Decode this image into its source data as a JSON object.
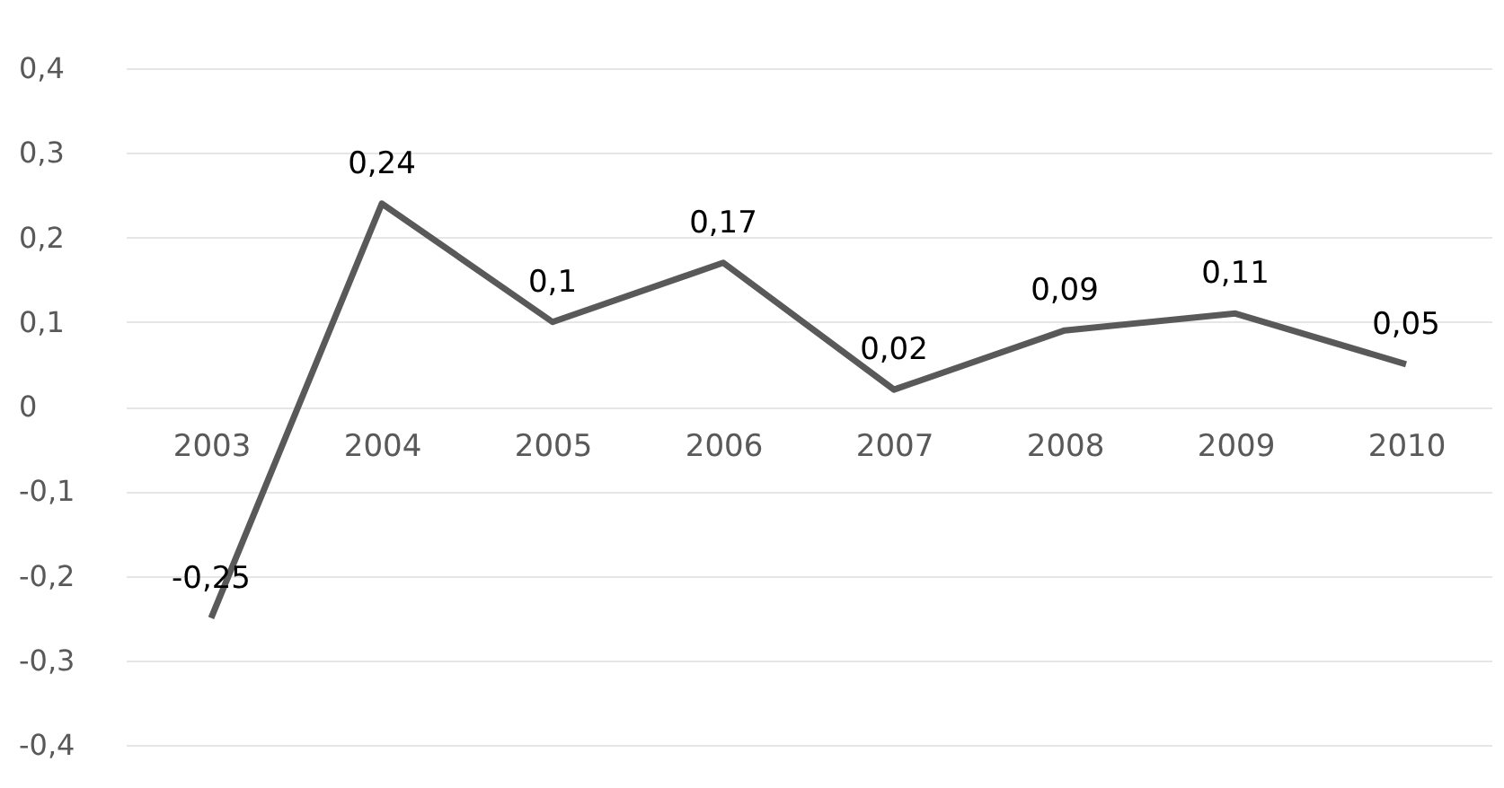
{
  "chart_data": {
    "type": "line",
    "categories": [
      "2003",
      "2004",
      "2005",
      "2006",
      "2007",
      "2008",
      "2009",
      "2010"
    ],
    "series": [
      {
        "color": "#595959",
        "values": [
          -0.25,
          0.24,
          0.1,
          0.17,
          0.02,
          0.09,
          0.11,
          0.05
        ],
        "value_labels": [
          "-0,25",
          "0,24",
          "0,1",
          "0,17",
          "0,02",
          "0,09",
          "0,11",
          "0,05"
        ]
      }
    ],
    "ylim": [
      -0.4,
      0.4
    ],
    "yticks": [
      {
        "value": -0.4,
        "label": "-0,4"
      },
      {
        "value": -0.3,
        "label": "-0,3"
      },
      {
        "value": -0.2,
        "label": "-0,2"
      },
      {
        "value": -0.1,
        "label": "-0,1"
      },
      {
        "value": 0,
        "label": "0"
      },
      {
        "value": 0.1,
        "label": "0,1"
      },
      {
        "value": 0.2,
        "label": "0,2"
      },
      {
        "value": 0.3,
        "label": "0,3"
      },
      {
        "value": 0.4,
        "label": "0,4"
      }
    ],
    "grid": "y",
    "marker": "none",
    "line_style": "solid",
    "legend": false
  }
}
